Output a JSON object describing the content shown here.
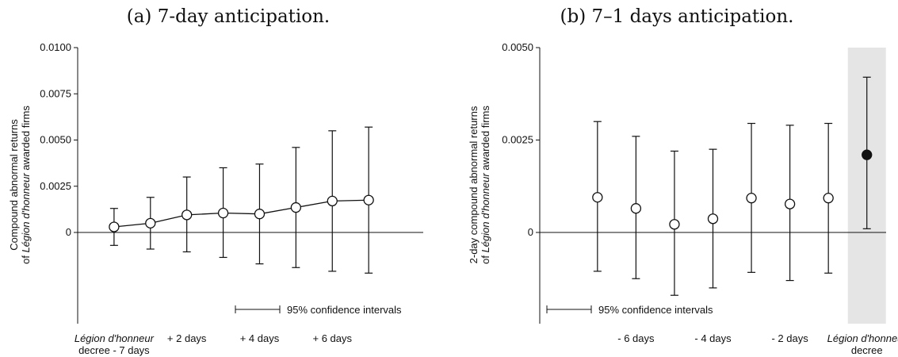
{
  "chart_data": [
    {
      "type": "scatter",
      "caption": "(a) 7-day anticipation.",
      "ylabel_line1": "Compound abnormal returns",
      "ylabel_line2_prefix": "of ",
      "ylabel_line2_em": "Légion d'honneur",
      "ylabel_line2_suffix": " awarded firms",
      "ylim": [
        -0.0042,
        0.01
      ],
      "yticks": [
        "0.0100",
        "0.0075",
        "0.0050",
        "0.0025",
        "0"
      ],
      "ytick_values": [
        0.01,
        0.0075,
        0.005,
        0.0025,
        0
      ],
      "x": [
        0,
        1,
        2,
        3,
        4,
        5,
        6,
        7
      ],
      "xlim": [
        -1,
        8.5
      ],
      "xtick_labels": [
        {
          "x": 0,
          "line1": "Légion d'honneur",
          "line1_italic": true,
          "line2": "decree - 7 days"
        },
        {
          "x": 2,
          "line1": "+ 2 days",
          "line1_italic": false,
          "line2": ""
        },
        {
          "x": 4,
          "line1": "+ 4 days",
          "line1_italic": false,
          "line2": ""
        },
        {
          "x": 6,
          "line1": "+ 6 days",
          "line1_italic": false,
          "line2": ""
        }
      ],
      "series": [
        {
          "estimate": [
            0.0003,
            0.0005,
            0.00095,
            0.00105,
            0.001,
            0.00135,
            0.0017,
            0.00175
          ],
          "ci_low": [
            -0.0007,
            -0.0009,
            -0.00105,
            -0.00135,
            -0.0017,
            -0.0019,
            -0.0021,
            -0.0022
          ],
          "ci_high": [
            0.0013,
            0.0019,
            0.003,
            0.0035,
            0.0037,
            0.0046,
            0.0055,
            0.0057
          ],
          "marker": "open-circle",
          "connect": true
        }
      ],
      "legend": {
        "label": "95% confidence intervals",
        "position": "bottom-right"
      },
      "color": "#111111"
    },
    {
      "type": "scatter",
      "caption": "(b) 7–1 days anticipation.",
      "ylabel_line1": "2-day compound abnormal returns",
      "ylabel_line2_prefix": "of ",
      "ylabel_line2_em": "Légion d'honneur",
      "ylabel_line2_suffix": " awarded firms",
      "ylim": [
        -0.0042,
        0.005
      ],
      "yticks": [
        "0.0050",
        "0.0025",
        "0"
      ],
      "ytick_values": [
        0.005,
        0.0025,
        0
      ],
      "x": [
        -7,
        -6,
        -5,
        -4,
        -3,
        -2,
        -1,
        0
      ],
      "xlim": [
        -8.5,
        0.5
      ],
      "xtick_labels": [
        {
          "x": -6,
          "line1": "- 6 days",
          "line1_italic": false,
          "line2": ""
        },
        {
          "x": -4,
          "line1": "- 4 days",
          "line1_italic": false,
          "line2": ""
        },
        {
          "x": -2,
          "line1": "- 2 days",
          "line1_italic": false,
          "line2": ""
        },
        {
          "x": 0,
          "line1": "Légion d'honneur",
          "line1_italic": true,
          "line2": "decree"
        }
      ],
      "series": [
        {
          "estimate": [
            0.00095,
            0.00065,
            0.00022,
            0.00037,
            0.00093,
            0.00077,
            0.00093,
            0.0021
          ],
          "ci_low": [
            -0.00105,
            -0.00125,
            -0.0017,
            -0.0015,
            -0.00108,
            -0.0013,
            -0.0011,
            0.0001
          ],
          "ci_high": [
            0.003,
            0.0026,
            0.0022,
            0.00225,
            0.00295,
            0.0029,
            0.00295,
            0.0042
          ],
          "marker": "open-circle",
          "highlight_last": true,
          "connect": false
        }
      ],
      "highlight": {
        "x": 0,
        "color": "#e5e5e5"
      },
      "legend": {
        "label": "95% confidence intervals",
        "position": "bottom-left"
      },
      "color": "#111111"
    }
  ]
}
